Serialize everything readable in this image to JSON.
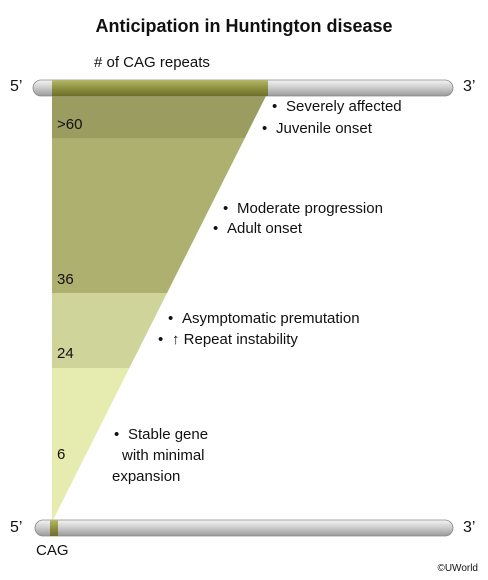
{
  "title": "Anticipation in Huntington disease",
  "repeat_axis_label": "# of CAG repeats",
  "unit_label": "CAG",
  "strand_ends": {
    "five_prime": "5’",
    "three_prime": "3’"
  },
  "thresholds": [
    ">60",
    "36",
    "24",
    "6"
  ],
  "zones": [
    {
      "range": ">60",
      "color": "#9a9c60",
      "lines": [
        "Severely affected",
        "Juvenile onset"
      ]
    },
    {
      "range": "36-60",
      "color": "#aeb070",
      "lines": [
        "Moderate progression",
        "Adult onset"
      ]
    },
    {
      "range": "24-35",
      "color": "#ced49a",
      "lines": [
        "Asymptomatic premutation",
        "↑ Repeat instability"
      ]
    },
    {
      "range": "6-23",
      "color": "#e6ebb0",
      "lines": [
        "Stable gene",
        "with minimal",
        "expansion"
      ]
    }
  ],
  "colors": {
    "strand": "#bdbdbd",
    "strand_highlight": "#8f913f",
    "background": "#ffffff"
  },
  "bullet_glyph": "•",
  "copyright": "©UWorld"
}
